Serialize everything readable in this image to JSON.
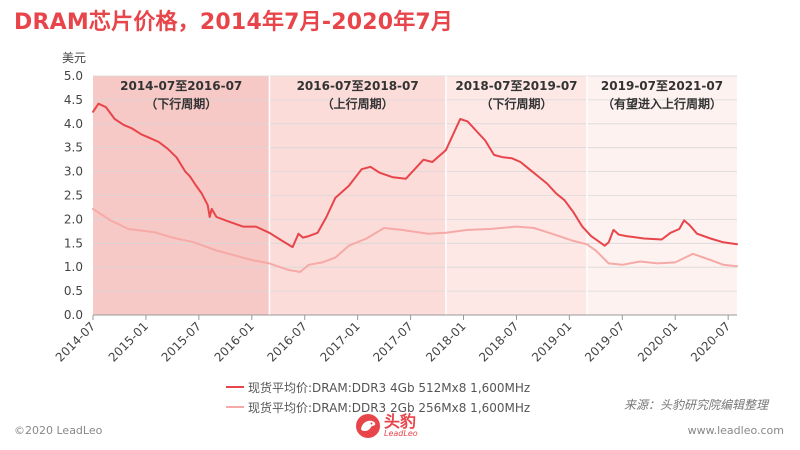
{
  "header": {
    "title": "DRAM芯片价格，2014年7月-2020年7月"
  },
  "chart_data": {
    "type": "line",
    "ylabel": "美元",
    "ylim": [
      0,
      5
    ],
    "yticks": [
      "0.0",
      "0.5",
      "1.0",
      "1.5",
      "2.0",
      "2.5",
      "3.0",
      "3.5",
      "4.0",
      "4.5",
      "5.0"
    ],
    "xlim": [
      "2014-07",
      "2020-08"
    ],
    "xticks": [
      "2014-07",
      "2015-01",
      "2015-07",
      "2016-01",
      "2016-07",
      "2017-01",
      "2017-07",
      "2018-01",
      "2018-07",
      "2019-01",
      "2019-07",
      "2020-01",
      "2020-07"
    ],
    "periods": [
      {
        "start": "2014-07",
        "end": "2016-03",
        "label": "2014-07至2016-07",
        "sublabel": "（下行周期）",
        "color": "#f7c9c6"
      },
      {
        "start": "2016-03",
        "end": "2017-11",
        "label": "2016-07至2018-07",
        "sublabel": "（上行周期）",
        "color": "#fbdcd9"
      },
      {
        "start": "2017-11",
        "end": "2019-03",
        "label": "2018-07至2019-07",
        "sublabel": "（下行周期）",
        "color": "#fde8e6"
      },
      {
        "start": "2019-03",
        "end": "2020-08",
        "label": "2019-07至2021-07",
        "sublabel": "（有望进入上行周期）",
        "color": "#fef2f1"
      }
    ],
    "series": [
      {
        "name": "现货平均价:DRAM:DDR3 4Gb 512Mx8 1,600MHz",
        "color": "#e8454b",
        "points": [
          [
            "2014-07-01",
            4.25
          ],
          [
            "2014-07-20",
            4.42
          ],
          [
            "2014-08-15",
            4.35
          ],
          [
            "2014-09-15",
            4.1
          ],
          [
            "2014-10-15",
            3.98
          ],
          [
            "2014-11-15",
            3.9
          ],
          [
            "2014-12-15",
            3.78
          ],
          [
            "2015-01-15",
            3.7
          ],
          [
            "2015-02-15",
            3.62
          ],
          [
            "2015-03-15",
            3.48
          ],
          [
            "2015-04-15",
            3.3
          ],
          [
            "2015-05-15",
            3.0
          ],
          [
            "2015-06-01",
            2.9
          ],
          [
            "2015-06-20",
            2.72
          ],
          [
            "2015-07-10",
            2.55
          ],
          [
            "2015-08-01",
            2.3
          ],
          [
            "2015-08-08",
            2.05
          ],
          [
            "2015-08-15",
            2.22
          ],
          [
            "2015-09-01",
            2.05
          ],
          [
            "2015-10-15",
            1.95
          ],
          [
            "2015-12-01",
            1.85
          ],
          [
            "2016-01-15",
            1.85
          ],
          [
            "2016-03-01",
            1.72
          ],
          [
            "2016-04-15",
            1.55
          ],
          [
            "2016-05-20",
            1.42
          ],
          [
            "2016-06-10",
            1.7
          ],
          [
            "2016-06-25",
            1.62
          ],
          [
            "2016-07-15",
            1.65
          ],
          [
            "2016-08-15",
            1.72
          ],
          [
            "2016-09-15",
            2.05
          ],
          [
            "2016-10-15",
            2.45
          ],
          [
            "2016-12-01",
            2.7
          ],
          [
            "2017-01-15",
            3.05
          ],
          [
            "2017-02-15",
            3.1
          ],
          [
            "2017-03-15",
            2.98
          ],
          [
            "2017-05-01",
            2.88
          ],
          [
            "2017-06-15",
            2.85
          ],
          [
            "2017-08-15",
            3.25
          ],
          [
            "2017-09-15",
            3.2
          ],
          [
            "2017-11-01",
            3.45
          ],
          [
            "2017-12-01",
            3.85
          ],
          [
            "2017-12-20",
            4.1
          ],
          [
            "2018-01-15",
            4.05
          ],
          [
            "2018-02-15",
            3.85
          ],
          [
            "2018-03-15",
            3.65
          ],
          [
            "2018-04-15",
            3.35
          ],
          [
            "2018-05-15",
            3.3
          ],
          [
            "2018-06-15",
            3.28
          ],
          [
            "2018-07-15",
            3.2
          ],
          [
            "2018-08-15",
            3.05
          ],
          [
            "2018-09-15",
            2.9
          ],
          [
            "2018-10-15",
            2.75
          ],
          [
            "2018-11-15",
            2.55
          ],
          [
            "2018-12-15",
            2.4
          ],
          [
            "2019-01-15",
            2.15
          ],
          [
            "2019-02-15",
            1.85
          ],
          [
            "2019-03-15",
            1.65
          ],
          [
            "2019-04-15",
            1.52
          ],
          [
            "2019-05-01",
            1.45
          ],
          [
            "2019-05-15",
            1.52
          ],
          [
            "2019-06-01",
            1.78
          ],
          [
            "2019-06-20",
            1.68
          ],
          [
            "2019-07-15",
            1.65
          ],
          [
            "2019-09-15",
            1.6
          ],
          [
            "2019-11-15",
            1.58
          ],
          [
            "2019-12-15",
            1.72
          ],
          [
            "2020-01-15",
            1.8
          ],
          [
            "2020-02-01",
            1.98
          ],
          [
            "2020-02-20",
            1.88
          ],
          [
            "2020-03-15",
            1.7
          ],
          [
            "2020-05-01",
            1.6
          ],
          [
            "2020-06-15",
            1.52
          ],
          [
            "2020-08-01",
            1.48
          ]
        ]
      },
      {
        "name": "现货平均价:DRAM:DDR3 2Gb 256Mx8 1,600MHz",
        "color": "#f5aaa7",
        "points": [
          [
            "2014-07-01",
            2.22
          ],
          [
            "2014-09-01",
            1.98
          ],
          [
            "2014-11-01",
            1.8
          ],
          [
            "2015-02-01",
            1.73
          ],
          [
            "2015-04-01",
            1.62
          ],
          [
            "2015-06-15",
            1.52
          ],
          [
            "2015-09-01",
            1.35
          ],
          [
            "2015-11-01",
            1.25
          ],
          [
            "2016-01-01",
            1.15
          ],
          [
            "2016-03-01",
            1.08
          ],
          [
            "2016-05-01",
            0.95
          ],
          [
            "2016-06-15",
            0.9
          ],
          [
            "2016-07-15",
            1.05
          ],
          [
            "2016-09-01",
            1.1
          ],
          [
            "2016-10-15",
            1.2
          ],
          [
            "2016-12-01",
            1.45
          ],
          [
            "2017-02-01",
            1.6
          ],
          [
            "2017-04-01",
            1.82
          ],
          [
            "2017-06-01",
            1.78
          ],
          [
            "2017-09-01",
            1.7
          ],
          [
            "2017-11-01",
            1.72
          ],
          [
            "2018-01-15",
            1.78
          ],
          [
            "2018-04-01",
            1.8
          ],
          [
            "2018-07-01",
            1.85
          ],
          [
            "2018-09-01",
            1.82
          ],
          [
            "2018-11-01",
            1.7
          ],
          [
            "2019-01-15",
            1.55
          ],
          [
            "2019-03-01",
            1.48
          ],
          [
            "2019-04-01",
            1.35
          ],
          [
            "2019-05-15",
            1.08
          ],
          [
            "2019-07-01",
            1.05
          ],
          [
            "2019-09-01",
            1.12
          ],
          [
            "2019-11-01",
            1.08
          ],
          [
            "2020-01-01",
            1.1
          ],
          [
            "2020-03-01",
            1.28
          ],
          [
            "2020-05-01",
            1.15
          ],
          [
            "2020-06-15",
            1.05
          ],
          [
            "2020-08-01",
            1.02
          ]
        ]
      }
    ],
    "legend_position": "bottom-center"
  },
  "source_note": "来源：头豹研究院编辑整理",
  "footer": {
    "copyright": "©2020 LeadLeo",
    "website": "www.leadleo.com"
  },
  "brand": {
    "name": "头豹",
    "sub": "LeadLeo",
    "color": "#e8454b"
  }
}
